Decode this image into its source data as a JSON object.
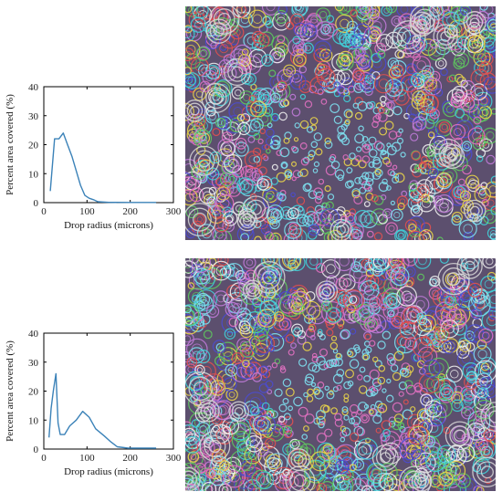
{
  "chart_data": [
    {
      "type": "line",
      "title": "",
      "xlabel": "Drop radius (microns)",
      "ylabel": "Percent area covered (%)",
      "xlim": [
        0,
        300
      ],
      "ylim": [
        0,
        40
      ],
      "xticks": [
        0,
        100,
        200,
        300
      ],
      "yticks": [
        0,
        10,
        20,
        30,
        40
      ],
      "grid": false,
      "series": [
        {
          "color": "#3b82b8",
          "x": [
            15,
            25,
            35,
            45,
            55,
            65,
            75,
            85,
            95,
            105,
            115,
            125,
            150,
            200,
            260
          ],
          "y": [
            4,
            22,
            22,
            24,
            20,
            16,
            11,
            6,
            2.5,
            1.5,
            1,
            0.3,
            0.1,
            0.05,
            0.05
          ]
        }
      ]
    },
    {
      "type": "line",
      "title": "",
      "xlabel": "Drop radius (microns)",
      "ylabel": "Percent area covered (%)",
      "xlim": [
        0,
        300
      ],
      "ylim": [
        0,
        40
      ],
      "xticks": [
        0,
        100,
        200,
        300
      ],
      "yticks": [
        0,
        10,
        20,
        30,
        40
      ],
      "grid": false,
      "series": [
        {
          "color": "#3b82b8",
          "x": [
            12,
            17,
            22,
            28,
            33,
            38,
            48,
            60,
            75,
            90,
            105,
            120,
            140,
            155,
            170,
            195,
            220,
            260
          ],
          "y": [
            4,
            14,
            20,
            26,
            9,
            5,
            5,
            8,
            10,
            13,
            11,
            7,
            4.5,
            2.5,
            0.8,
            0.3,
            0.3,
            0.3
          ]
        }
      ]
    }
  ],
  "images": {
    "top": {
      "description": "microscopy-droplet-pattern"
    },
    "bottom": {
      "description": "microscopy-droplet-pattern"
    }
  },
  "colors": {
    "ring_palette": [
      "#e8d34a",
      "#7de0f0",
      "#c07ad8",
      "#4b4bd0",
      "#e05050",
      "#5ec85e",
      "#f0f0f0",
      "#e070c0",
      "#40d0d8"
    ]
  }
}
